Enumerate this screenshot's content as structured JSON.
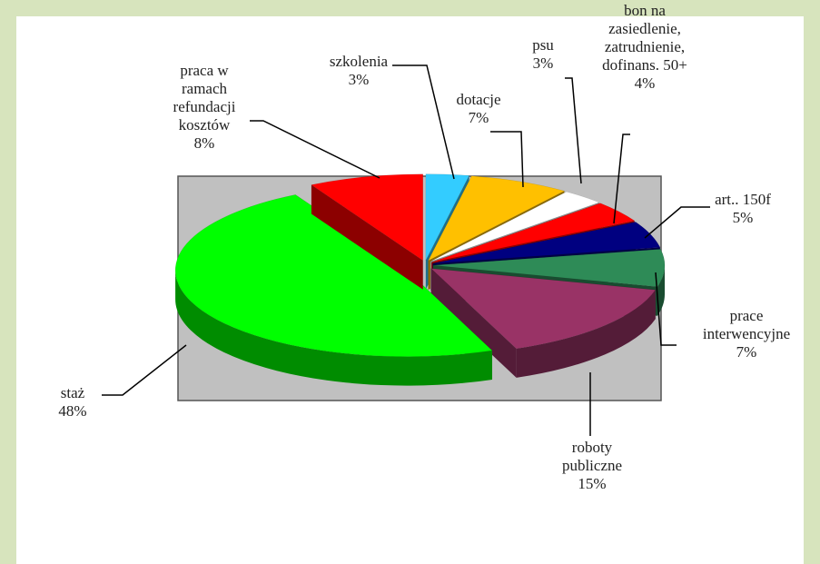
{
  "chart_data": {
    "type": "pie3d",
    "categories": [
      "szkolenia",
      "dotacje",
      "psu",
      "bon na\nzasiedlenie,\nzatrudnienie,\ndofinans. 50+",
      "art.. 150f",
      "prace\ninterwencyjne",
      "roboty\npubliczne",
      "staż",
      "praca w\nramach\nrefundacji\nkosztów"
    ],
    "values": [
      3,
      7,
      3,
      4,
      5,
      7,
      15,
      48,
      8
    ],
    "value_labels": [
      "3%",
      "7%",
      "3%",
      "4%",
      "5%",
      "7%",
      "15%",
      "48%",
      "8%"
    ],
    "colors": [
      "#33ccff",
      "#ffc000",
      "#ffffff",
      "#ff0000",
      "#000080",
      "#2e8b57",
      "#993366",
      "#00ff00",
      "#ff0000"
    ]
  }
}
